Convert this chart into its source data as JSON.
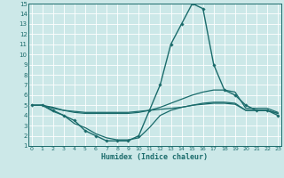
{
  "xlabel": "Humidex (Indice chaleur)",
  "xlim": [
    -0.3,
    23.3
  ],
  "ylim": [
    1,
    15
  ],
  "xticks": [
    0,
    1,
    2,
    3,
    4,
    5,
    6,
    7,
    8,
    9,
    10,
    11,
    12,
    13,
    14,
    15,
    16,
    17,
    18,
    19,
    20,
    21,
    22,
    23
  ],
  "yticks": [
    1,
    2,
    3,
    4,
    5,
    6,
    7,
    8,
    9,
    10,
    11,
    12,
    13,
    14,
    15
  ],
  "bg_color": "#cce8e8",
  "grid_color": "#b0d8d8",
  "line_color": "#1a6b6b",
  "lines": [
    {
      "x": [
        0,
        1,
        2,
        3,
        4,
        5,
        6,
        7,
        8,
        9,
        10,
        11,
        12,
        13,
        14,
        15,
        16,
        17,
        18,
        19,
        20,
        21,
        22,
        23
      ],
      "y": [
        5,
        5,
        4.5,
        4,
        3.5,
        2.5,
        2,
        1.5,
        1.5,
        1.5,
        2,
        4.5,
        7,
        11,
        13,
        15,
        14.5,
        9,
        6.5,
        6,
        5,
        4.5,
        4.5,
        4
      ],
      "marker": "D",
      "markersize": 1.8,
      "linewidth": 1.0
    },
    {
      "x": [
        0,
        1,
        2,
        3,
        4,
        5,
        6,
        7,
        8,
        9,
        10,
        11,
        12,
        13,
        14,
        15,
        16,
        17,
        18,
        19,
        20,
        21,
        22,
        23
      ],
      "y": [
        5,
        5,
        4.7,
        4.5,
        4.4,
        4.3,
        4.3,
        4.3,
        4.3,
        4.3,
        4.4,
        4.5,
        4.6,
        4.7,
        4.8,
        5.0,
        5.1,
        5.2,
        5.2,
        5.1,
        4.5,
        4.5,
        4.5,
        4.2
      ],
      "marker": null,
      "linewidth": 0.9
    },
    {
      "x": [
        0,
        1,
        2,
        3,
        4,
        5,
        6,
        7,
        8,
        9,
        10,
        11,
        12,
        13,
        14,
        15,
        16,
        17,
        18,
        19,
        20,
        21,
        22,
        23
      ],
      "y": [
        5,
        5,
        4.8,
        4.5,
        4.3,
        4.2,
        4.2,
        4.2,
        4.2,
        4.2,
        4.3,
        4.5,
        4.8,
        5.2,
        5.6,
        6.0,
        6.3,
        6.5,
        6.5,
        6.3,
        4.7,
        4.7,
        4.7,
        4.3
      ],
      "marker": null,
      "linewidth": 0.9
    },
    {
      "x": [
        0,
        1,
        2,
        3,
        4,
        5,
        6,
        7,
        8,
        9,
        10,
        11,
        12,
        13,
        14,
        15,
        16,
        17,
        18,
        19,
        20,
        21,
        22,
        23
      ],
      "y": [
        5,
        5,
        4.4,
        4,
        3.2,
        2.8,
        2.2,
        1.8,
        1.6,
        1.6,
        1.8,
        2.8,
        4,
        4.5,
        4.8,
        5,
        5.2,
        5.3,
        5.3,
        5.2,
        4.5,
        4.5,
        4.5,
        4.2
      ],
      "marker": null,
      "linewidth": 0.9
    }
  ]
}
